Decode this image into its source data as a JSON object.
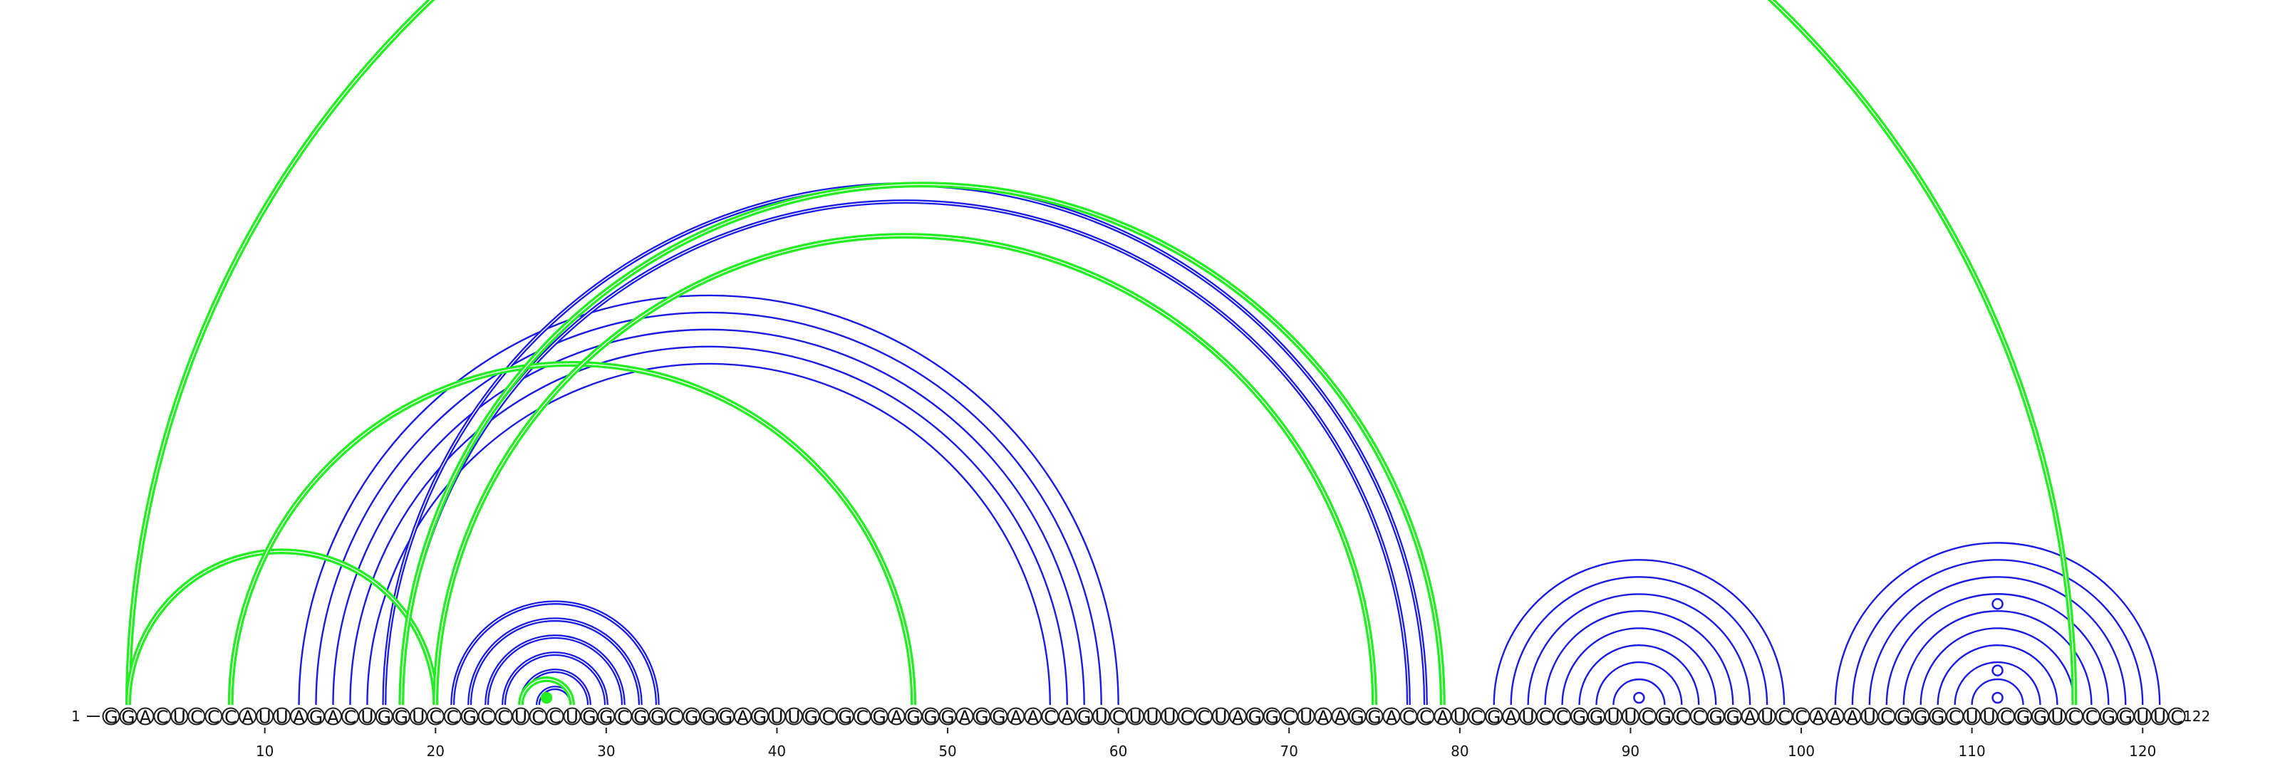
{
  "sequence": "GGACUCCCAUUAGACUGGUCCGCCUCCUGGCGGCGGGAGUUGCGCGAGGGAGGAACAGUCUUUCCUAGGCUAAGGACCAUCGAUCCGGUUCGCCGGAUCCAAAUCGGGCUUCGGUCCGGUUC",
  "start_label": "1",
  "end_label": "122",
  "ticks": [
    10,
    20,
    30,
    40,
    50,
    60,
    70,
    80,
    90,
    100,
    110,
    120
  ],
  "colors": {
    "blue": "#1a1ae6",
    "green": "#22ee22",
    "outline": "#222222"
  },
  "arc_groups": [
    {
      "color": "blue",
      "double": false,
      "pairs": [
        [
          12,
          60
        ],
        [
          13,
          59
        ],
        [
          14,
          58
        ],
        [
          15,
          57
        ],
        [
          16,
          56
        ]
      ]
    },
    {
      "color": "blue",
      "double": true,
      "pairs": [
        [
          17,
          78
        ],
        [
          18,
          77
        ]
      ]
    },
    {
      "color": "blue",
      "double": true,
      "pairs": [
        [
          21,
          33
        ],
        [
          22,
          32
        ],
        [
          23,
          31
        ],
        [
          24,
          30
        ],
        [
          25,
          29
        ],
        [
          26,
          28
        ]
      ]
    },
    {
      "color": "green",
      "double": true,
      "pairs": [
        [
          25,
          28
        ]
      ]
    },
    {
      "color": "blue",
      "double": false,
      "pairs": [
        [
          82,
          99
        ],
        [
          83,
          98
        ],
        [
          84,
          97
        ],
        [
          85,
          96
        ],
        [
          86,
          95
        ],
        [
          87,
          94
        ],
        [
          88,
          93
        ],
        [
          89,
          92
        ]
      ]
    },
    {
      "color": "blue",
      "double": false,
      "pairs": [
        [
          102,
          121
        ],
        [
          103,
          120
        ],
        [
          104,
          119
        ],
        [
          105,
          118
        ],
        [
          106,
          117
        ],
        [
          107,
          116
        ],
        [
          108,
          115
        ],
        [
          109,
          114
        ],
        [
          110,
          113
        ]
      ]
    },
    {
      "color": "green",
      "double": true,
      "pairs": [
        [
          2,
          116
        ],
        [
          2,
          20
        ],
        [
          8,
          48
        ],
        [
          18,
          79
        ],
        [
          20,
          75
        ]
      ]
    }
  ],
  "markers": [
    {
      "pos": 90.5,
      "radius_nt": 0,
      "style": "open"
    },
    {
      "pos": 111.5,
      "radius_nt": 0,
      "style": "open"
    },
    {
      "pos": 111.5,
      "radius_nt": 1.6,
      "style": "open"
    },
    {
      "pos": 111.5,
      "radius_nt": 5.5,
      "style": "open"
    },
    {
      "pos": 26.5,
      "radius_nt": 0,
      "style": "filled-green"
    }
  ]
}
